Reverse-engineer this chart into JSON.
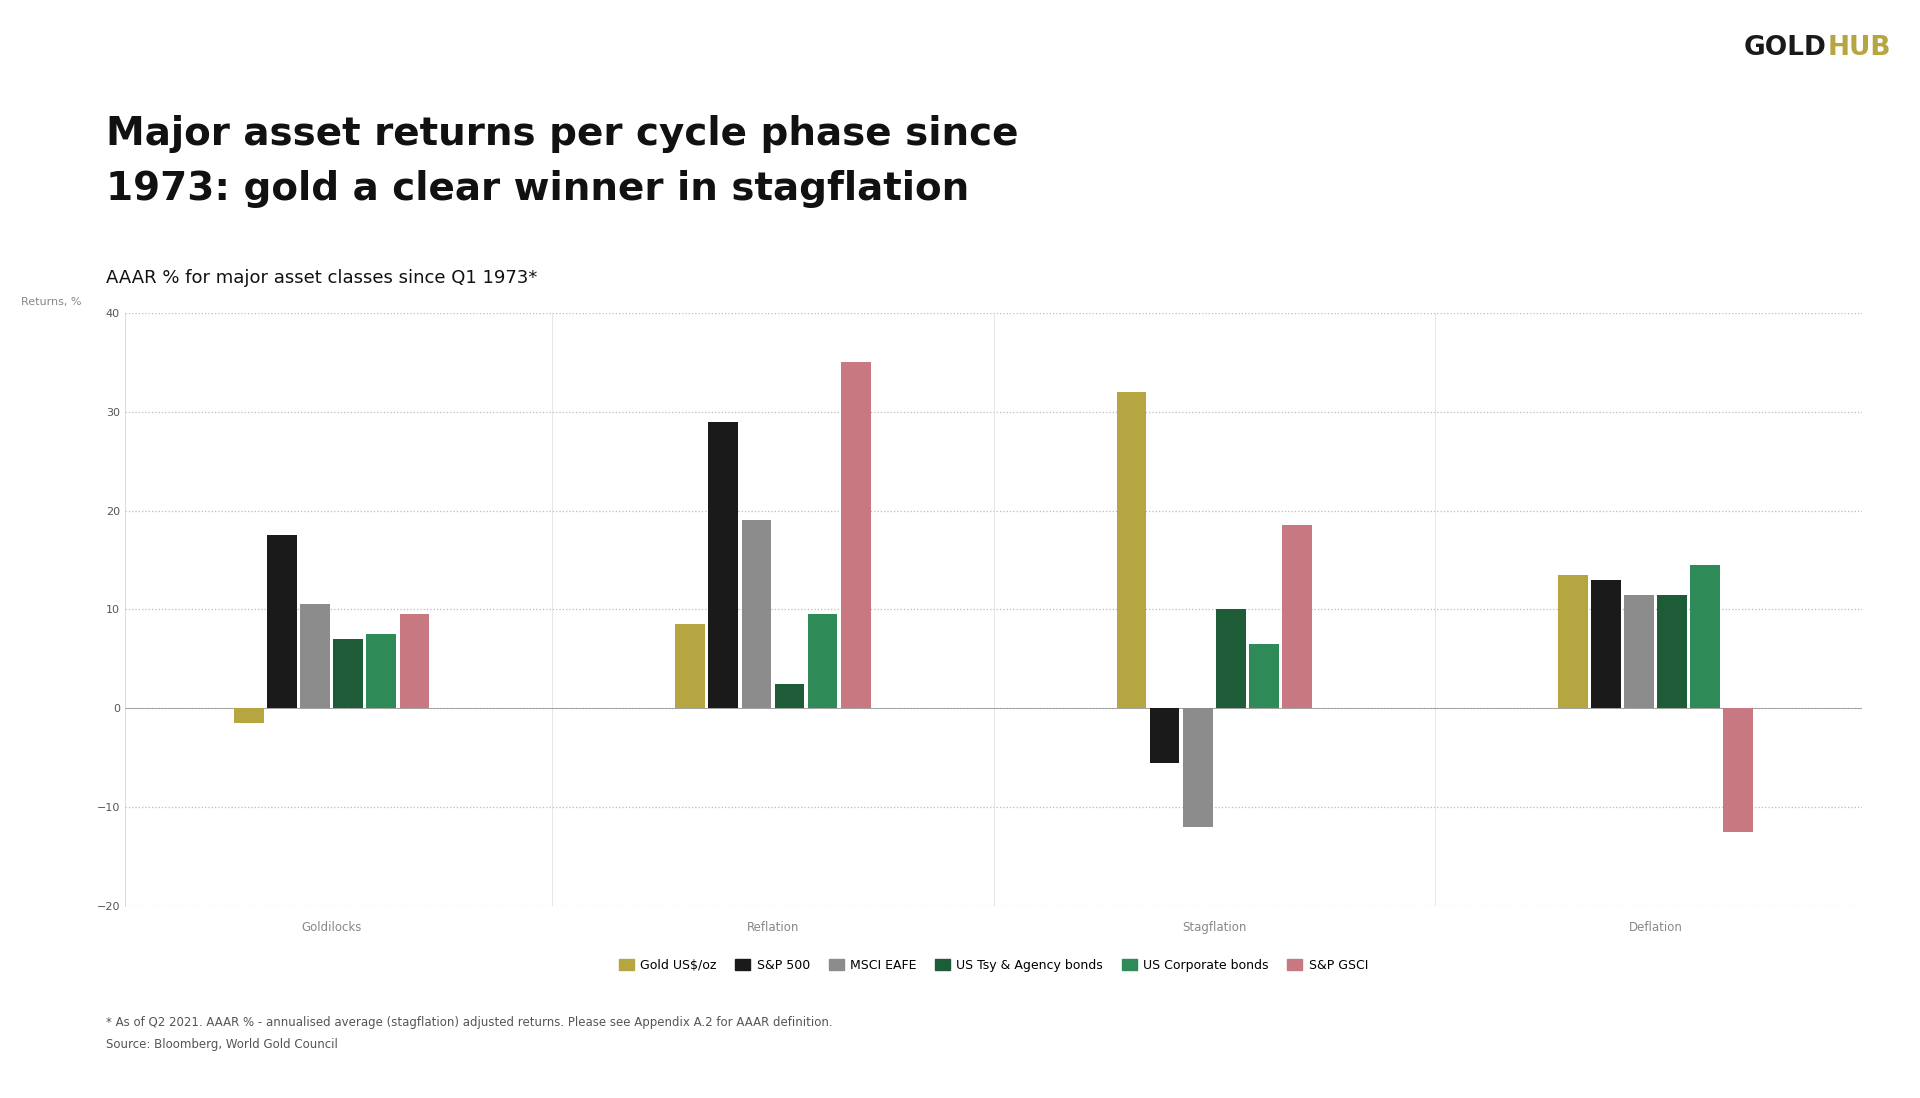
{
  "title_line1": "Major asset returns per cycle phase since",
  "title_line2": "1973: gold a clear winner in stagflation",
  "subtitle": "AAAR % for major asset classes since Q1 1973*",
  "ylabel": "Returns, %",
  "ylim": [
    -20,
    40
  ],
  "yticks": [
    -20,
    -10,
    0,
    10,
    20,
    30,
    40
  ],
  "cycles": [
    "Goldilocks",
    "Reflation",
    "Stagflation",
    "Deflation"
  ],
  "assets": [
    "Gold US$/oz",
    "S&P 500",
    "MSCI EAFE",
    "US Tsy & Agency bonds",
    "US Corporate bonds",
    "S&P GSCI"
  ],
  "colors": [
    "#b5a642",
    "#1a1a1a",
    "#8c8c8c",
    "#1e5c38",
    "#2e8b57",
    "#c87880"
  ],
  "data": {
    "Goldilocks": [
      -1.5,
      17.5,
      10.5,
      7.0,
      7.5,
      9.5
    ],
    "Reflation": [
      8.5,
      29.0,
      19.0,
      2.5,
      9.5,
      35.0
    ],
    "Stagflation": [
      32.0,
      -5.5,
      -12.0,
      10.0,
      6.5,
      18.5
    ],
    "Deflation": [
      13.5,
      13.0,
      11.5,
      11.5,
      14.5,
      -12.5
    ]
  },
  "footnote1": "* As of Q2 2021. AAAR % - annualised average (stagflation) adjusted returns. Please see Appendix A.2 for AAAR definition.",
  "footnote2": "Source: Bloomberg, World Gold Council",
  "title_bar_color": "#b5a642",
  "background_color": "#ffffff",
  "grid_color": "#bbbbbb",
  "cycle_label_color": "#888888",
  "ytick_color": "#555555"
}
